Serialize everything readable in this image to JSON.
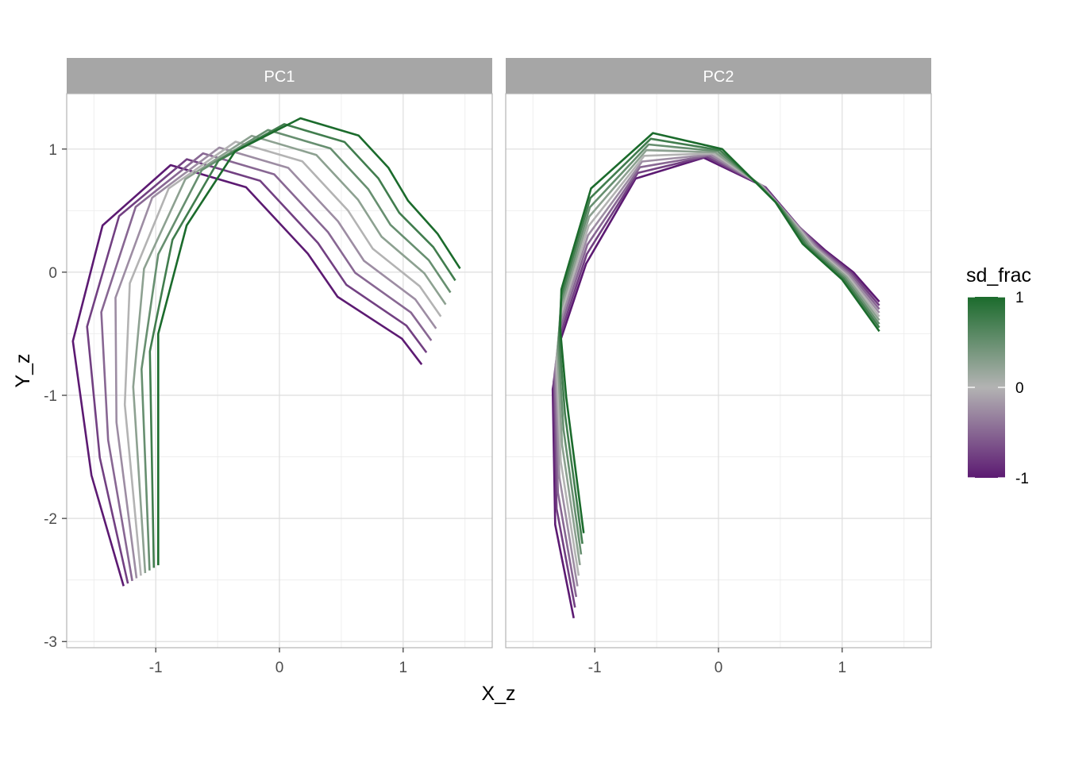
{
  "chart_data": {
    "type": "line",
    "xlabel": "X_z",
    "ylabel": "Y_z",
    "xlim": [
      -1.72,
      1.72
    ],
    "ylim": [
      -3.05,
      1.45
    ],
    "x_ticks": [
      -1,
      0,
      1
    ],
    "y_ticks": [
      -3,
      -2,
      -1,
      0,
      1
    ],
    "x_tick_labels": [
      "-1",
      "0",
      "1"
    ],
    "y_tick_labels": [
      "-3",
      "-2",
      "-1",
      "0",
      "1"
    ],
    "grid": true,
    "legend": {
      "title": "sd_frac",
      "type": "colorbar",
      "placement": "right",
      "range": [
        -1,
        1
      ],
      "tick_values": [
        1,
        0,
        -1
      ],
      "tick_labels": [
        "1",
        "0",
        "-1"
      ],
      "colors": {
        "low": "#5c1a72",
        "mid": "#b3b3b3",
        "high": "#1b6b2c"
      }
    },
    "sd_frac_values": [
      -1,
      -0.75,
      -0.5,
      -0.25,
      0,
      0.25,
      0.5,
      0.75,
      1
    ],
    "facets": [
      {
        "strip": "PC1",
        "curves": [
          {
            "sd_frac": -1,
            "x": [
              -1.26,
              -1.52,
              -1.67,
              -1.43,
              -0.88,
              -0.27,
              0.23,
              0.47,
              0.99,
              1.15
            ],
            "y": [
              -2.55,
              -1.65,
              -0.56,
              0.38,
              0.87,
              0.69,
              0.15,
              -0.2,
              -0.54,
              -0.75
            ]
          },
          {
            "sd_frac": 1,
            "x": [
              -0.98,
              -0.98,
              -0.75,
              -0.36,
              0.17,
              0.64,
              0.88,
              1.04,
              1.28,
              1.46
            ],
            "y": [
              -2.38,
              -0.5,
              0.38,
              0.98,
              1.25,
              1.11,
              0.85,
              0.58,
              0.31,
              0.03
            ]
          }
        ]
      },
      {
        "strip": "PC2",
        "curves": [
          {
            "sd_frac": -1,
            "x": [
              -1.17,
              -1.32,
              -1.34,
              -1.28,
              -1.07,
              -0.67,
              -0.12,
              0.38,
              0.66,
              0.86,
              1.09,
              1.3
            ],
            "y": [
              -2.81,
              -2.05,
              -0.95,
              -0.56,
              0.07,
              0.76,
              0.93,
              0.69,
              0.36,
              0.18,
              0.0,
              -0.24
            ]
          },
          {
            "sd_frac": 1,
            "x": [
              -1.09,
              -1.23,
              -1.28,
              -1.27,
              -1.03,
              -0.53,
              0.03,
              0.3,
              0.46,
              0.68,
              1.0,
              1.3
            ],
            "y": [
              -2.12,
              -1.02,
              -0.46,
              -0.14,
              0.68,
              1.13,
              1.0,
              0.73,
              0.57,
              0.23,
              -0.06,
              -0.48
            ]
          }
        ]
      }
    ]
  }
}
